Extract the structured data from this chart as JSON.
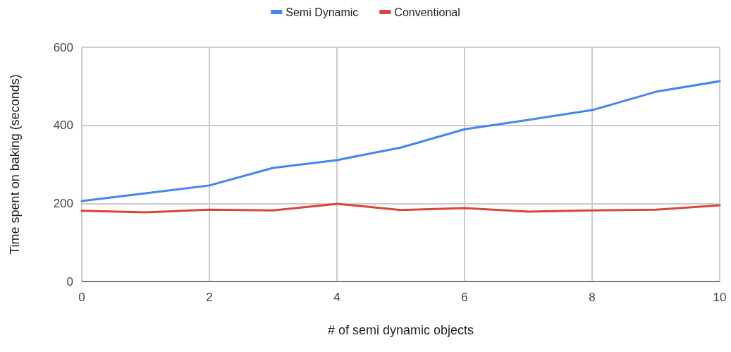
{
  "chart_data": {
    "type": "line",
    "xlabel": "# of semi dynamic objects",
    "ylabel": "Time spent on baking (seconds)",
    "x": [
      0,
      1,
      2,
      3,
      4,
      5,
      6,
      7,
      8,
      9,
      10
    ],
    "series": [
      {
        "name": "Semi Dynamic",
        "color": "#4285f4",
        "values": [
          206,
          226,
          246,
          291,
          311,
          343,
          390,
          414,
          439,
          486,
          513
        ]
      },
      {
        "name": "Conventional",
        "color": "#db4437",
        "values": [
          181,
          177,
          184,
          182,
          199,
          183,
          188,
          179,
          182,
          184,
          195
        ]
      }
    ],
    "xlim": [
      0,
      10
    ],
    "xticks": [
      0,
      2,
      4,
      6,
      8,
      10
    ],
    "ylim": [
      0,
      600
    ],
    "yticks": [
      0,
      200,
      400,
      600
    ],
    "grid": true,
    "legend": "top",
    "marker": "none",
    "line_style": "solid"
  }
}
